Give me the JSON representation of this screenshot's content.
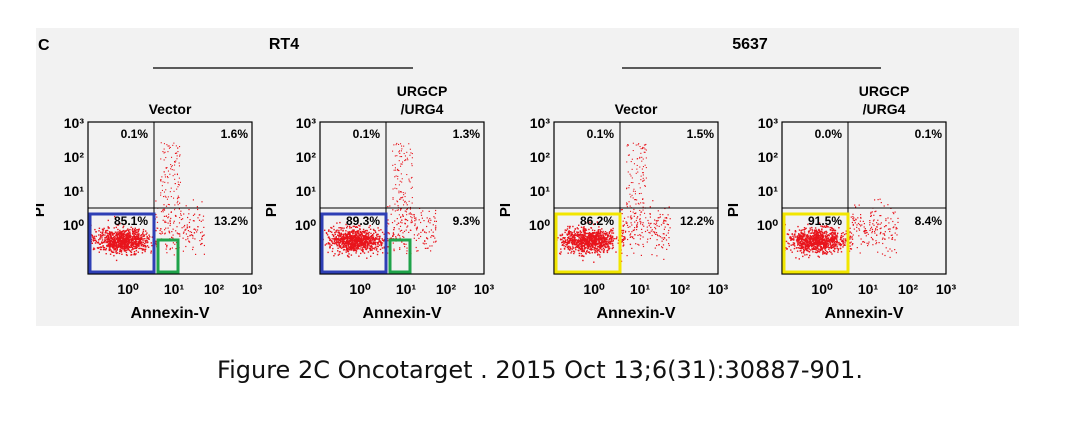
{
  "panel_letter": "C",
  "caption": "Figure 2C Oncotarget . 2015 Oct 13;6(31):30887-901.",
  "dot_color": "#e8141c",
  "chart_data": [
    {
      "type": "scatter",
      "group": "RT4",
      "title": "Vector",
      "xlabel": "Annexin-V",
      "ylabel": "PI",
      "scale": "log",
      "xticks": [
        "10⁰",
        "10¹",
        "10²",
        "10³"
      ],
      "yticks": [
        "10⁰",
        "10¹",
        "10²",
        "10³"
      ],
      "quadrants": {
        "upper_left": "0.1%",
        "upper_right": "1.6%",
        "lower_left": "85.1%",
        "lower_right": "13.2%"
      },
      "gates": [
        {
          "color": "#2e3fb5"
        },
        {
          "color": "#1fa34a"
        }
      ],
      "upper_cluster": true
    },
    {
      "type": "scatter",
      "group": "RT4",
      "title": "URGCP\n/URG4",
      "xlabel": "Annexin-V",
      "ylabel": "PI",
      "scale": "log",
      "xticks": [
        "10⁰",
        "10¹",
        "10²",
        "10³"
      ],
      "yticks": [
        "10⁰",
        "10¹",
        "10²",
        "10³"
      ],
      "quadrants": {
        "upper_left": "0.1%",
        "upper_right": "1.3%",
        "lower_left": "89.3%",
        "lower_right": "9.3%"
      },
      "gates": [
        {
          "color": "#2e3fb5"
        },
        {
          "color": "#1fa34a"
        }
      ],
      "upper_cluster": true
    },
    {
      "type": "scatter",
      "group": "5637",
      "title": "Vector",
      "xlabel": "Annexin-V",
      "ylabel": "PI",
      "scale": "log",
      "xticks": [
        "10⁰",
        "10¹",
        "10²",
        "10³"
      ],
      "yticks": [
        "10⁰",
        "10¹",
        "10²",
        "10³"
      ],
      "quadrants": {
        "upper_left": "0.1%",
        "upper_right": "1.5%",
        "lower_left": "86.2%",
        "lower_right": "12.2%"
      },
      "gates": [
        {
          "color": "#f2e600"
        }
      ],
      "upper_cluster": true
    },
    {
      "type": "scatter",
      "group": "5637",
      "title": "URGCP\n/URG4",
      "xlabel": "Annexin-V",
      "ylabel": "PI",
      "scale": "log",
      "xticks": [
        "10⁰",
        "10¹",
        "10²",
        "10³"
      ],
      "yticks": [
        "10⁰",
        "10¹",
        "10²",
        "10³"
      ],
      "quadrants": {
        "upper_left": "0.0%",
        "upper_right": "0.1%",
        "lower_left": "91.5%",
        "lower_right": "8.4%"
      },
      "gates": [
        {
          "color": "#f2e600"
        }
      ],
      "upper_cluster": false
    }
  ],
  "groups": [
    {
      "name": "RT4"
    },
    {
      "name": "5637"
    }
  ]
}
